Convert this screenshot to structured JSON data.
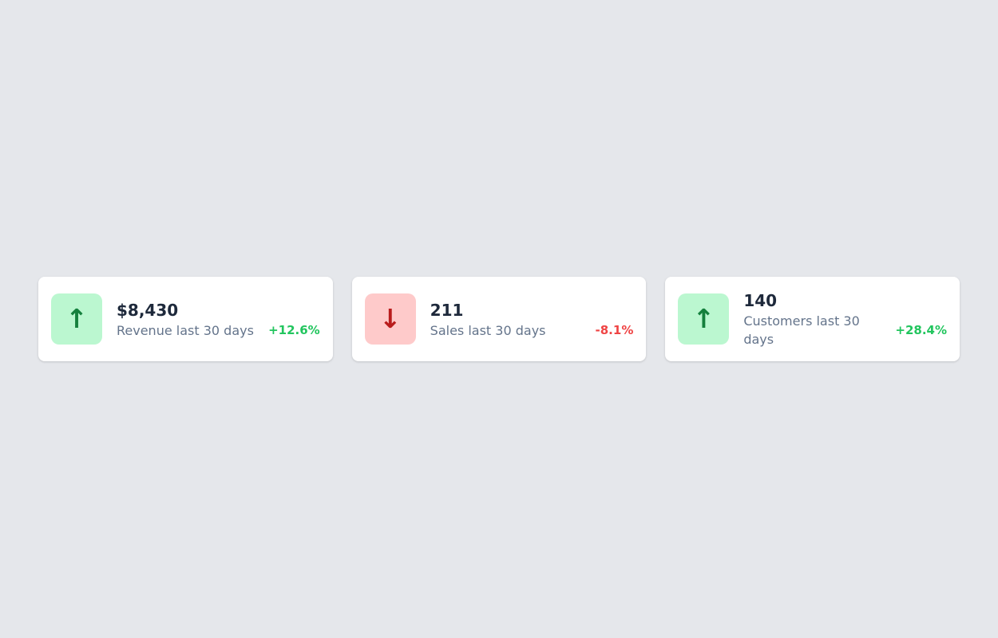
{
  "theme": {
    "page_background": "#e5e7eb",
    "card_background": "#ffffff",
    "value_color": "#1e293b",
    "label_color": "#64748b",
    "positive_color": "#22c55e",
    "negative_color": "#ef4444",
    "positive_icon_bg": "#bbf7d0",
    "positive_icon_color": "#15803d",
    "negative_icon_bg": "#fecaca",
    "negative_icon_color": "#b91c1c"
  },
  "cards": [
    {
      "value": "$8,430",
      "label": "Revenue last 30 days",
      "change": "+12.6%",
      "trend": "up",
      "icon": "arrow-up-icon",
      "icon_glyph": "↑",
      "icon_bg": "#bbf7d0",
      "icon_color": "#15803d",
      "change_color": "#22c55e"
    },
    {
      "value": "211",
      "label": "Sales last 30 days",
      "change": "-8.1%",
      "trend": "down",
      "icon": "arrow-down-icon",
      "icon_glyph": "↓",
      "icon_bg": "#fecaca",
      "icon_color": "#b91c1c",
      "change_color": "#ef4444"
    },
    {
      "value": "140",
      "label": "Customers last 30 days",
      "change": "+28.4%",
      "trend": "up",
      "icon": "arrow-up-icon",
      "icon_glyph": "↑",
      "icon_bg": "#bbf7d0",
      "icon_color": "#15803d",
      "change_color": "#22c55e"
    }
  ]
}
